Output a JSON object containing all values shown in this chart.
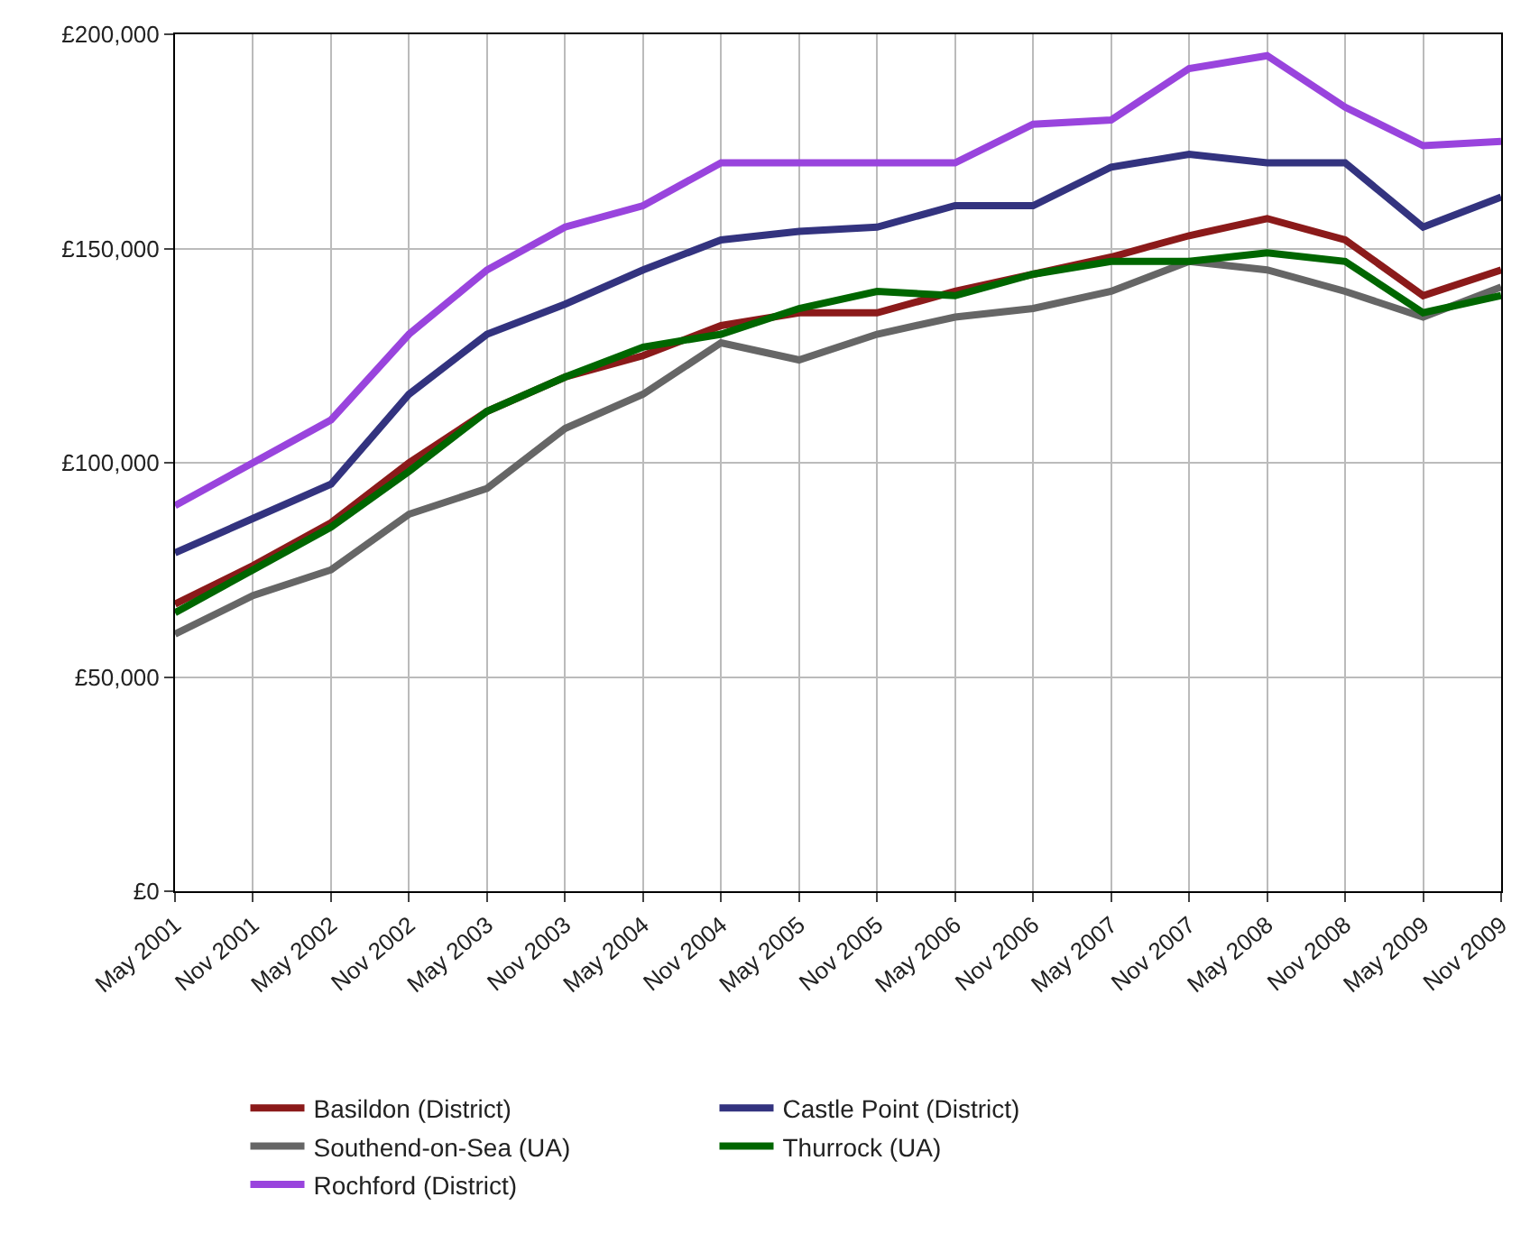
{
  "chart_data": {
    "type": "line",
    "categories": [
      "May 2001",
      "Nov 2001",
      "May 2002",
      "Nov 2002",
      "May 2003",
      "Nov 2003",
      "May 2004",
      "Nov 2004",
      "May 2005",
      "Nov 2005",
      "May 2006",
      "Nov 2006",
      "May 2007",
      "Nov 2007",
      "May 2008",
      "Nov 2008",
      "May 2009",
      "Nov 2009"
    ],
    "series": [
      {
        "name": "Basildon (District)",
        "color": "#8b1a1a",
        "values": [
          67000,
          76000,
          86000,
          100000,
          112000,
          120000,
          125000,
          132000,
          135000,
          135000,
          140000,
          144000,
          148000,
          153000,
          157000,
          152000,
          139000,
          145000
        ]
      },
      {
        "name": "Castle Point (District)",
        "color": "#33337f",
        "values": [
          79000,
          87000,
          95000,
          116000,
          130000,
          137000,
          145000,
          152000,
          154000,
          155000,
          160000,
          160000,
          169000,
          172000,
          170000,
          170000,
          155000,
          162000
        ]
      },
      {
        "name": "Southend-on-Sea (UA)",
        "color": "#666666",
        "values": [
          60000,
          69000,
          75000,
          88000,
          94000,
          108000,
          116000,
          128000,
          124000,
          130000,
          134000,
          136000,
          140000,
          147000,
          145000,
          140000,
          134000,
          141000
        ]
      },
      {
        "name": "Thurrock (UA)",
        "color": "#006600",
        "values": [
          65000,
          75000,
          85000,
          98000,
          112000,
          120000,
          127000,
          130000,
          136000,
          140000,
          139000,
          144000,
          147000,
          147000,
          149000,
          147000,
          135000,
          139000
        ]
      },
      {
        "name": "Rochford (District)",
        "color": "#9944dd",
        "values": [
          90000,
          100000,
          110000,
          130000,
          145000,
          155000,
          160000,
          170000,
          170000,
          170000,
          170000,
          179000,
          180000,
          192000,
          195000,
          183000,
          174000,
          175000
        ]
      }
    ],
    "ylim": [
      0,
      200000
    ],
    "yticks": [
      {
        "value": 0,
        "label": "£0"
      },
      {
        "value": 50000,
        "label": "£50,000"
      },
      {
        "value": 100000,
        "label": "£100,000"
      },
      {
        "value": 150000,
        "label": "£150,000"
      },
      {
        "value": 200000,
        "label": "£200,000"
      }
    ],
    "grid": true,
    "legend": "bottom",
    "marker": "none",
    "line_style": "solid"
  }
}
